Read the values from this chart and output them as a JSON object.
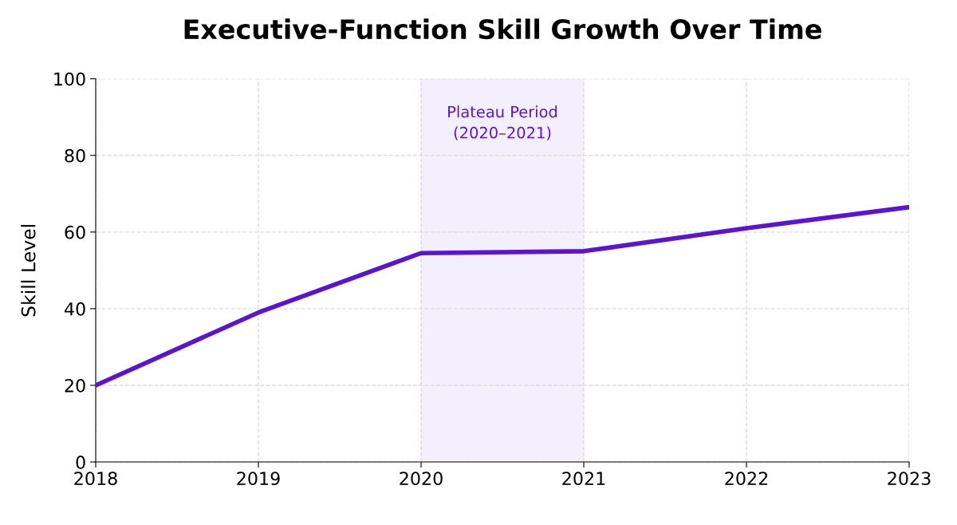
{
  "chart_data": {
    "type": "line",
    "title": "Executive-Function Skill Growth Over Time",
    "ylabel": "Skill Level",
    "x": [
      2018,
      2019,
      2020,
      2021,
      2022,
      2023
    ],
    "series": [
      {
        "color": "#5b14d4",
        "values": [
          20,
          39,
          54.5,
          55,
          61,
          66.5
        ]
      }
    ],
    "xlim": [
      2018,
      2023
    ],
    "xticks": [
      2018,
      2019,
      2020,
      2021,
      2022,
      2023
    ],
    "ylim": [
      0,
      100
    ],
    "yticks": [
      0,
      20,
      40,
      60,
      80,
      100
    ],
    "bands": [
      {
        "axis": "x",
        "from": 2020,
        "to": 2021,
        "label": "Plateau Period\n(2020–2021)",
        "color": "#f3effc"
      }
    ],
    "grid": true,
    "marker": "none",
    "line_style": "solid",
    "legend": false
  }
}
